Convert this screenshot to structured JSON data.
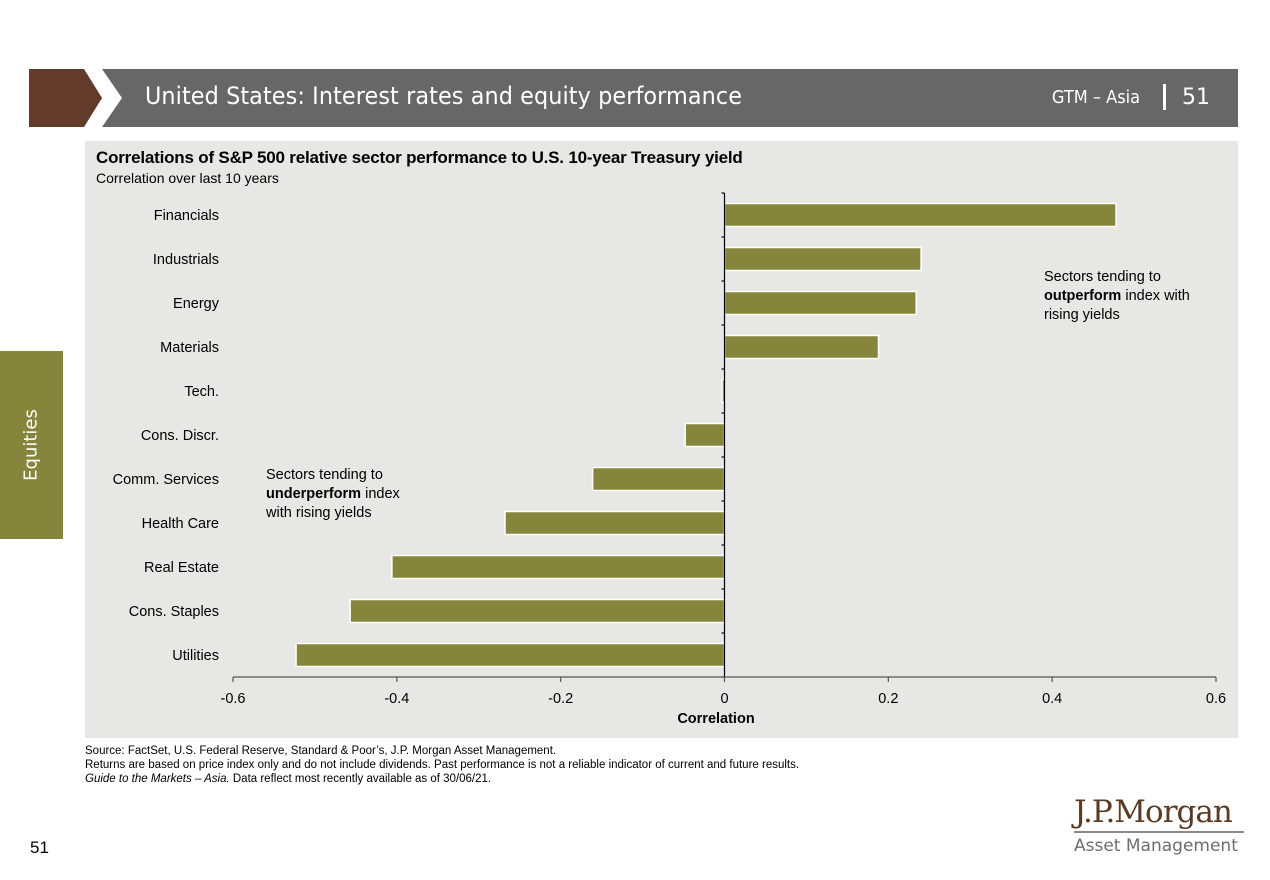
{
  "header": {
    "title": "United States: Interest rates and equity performance",
    "section": "GTM – Asia",
    "page": "51"
  },
  "sidebar": {
    "label": "Equities"
  },
  "annotations": {
    "outperform": {
      "line1": "Sectors tending to",
      "bold": "outperform",
      "rest": " index with",
      "line3": "rising yields"
    },
    "underperform": {
      "line1": "Sectors tending to",
      "bold": "underperform",
      "rest": " index",
      "line3": "with rising yields"
    }
  },
  "footer": {
    "source": "Source: FactSet, U.S. Federal Reserve, Standard & Poor’s, J.P. Morgan Asset Management.",
    "disclaimer": "Returns are based on price index only and do not include dividends. Past performance is not a reliable indicator of current and future results.",
    "guide_italic": "Guide to the Markets – Asia.",
    "guide_rest": " Data reflect most recently available as of 30/06/21."
  },
  "page_number": "51",
  "logo": {
    "top": "J.P.Morgan",
    "bottom": "Asset Management"
  },
  "colors": {
    "bar": "#85863c",
    "header_bar": "#676767",
    "header_accent": "#633b2b",
    "panel": "#e7e7e6"
  },
  "chart_data": {
    "type": "bar",
    "orientation": "horizontal",
    "title": "Correlations of S&P 500 relative sector performance to U.S. 10-year Treasury yield",
    "subtitle": "Correlation over last 10 years",
    "xlabel": "Correlation",
    "ylabel": "",
    "xlim": [
      -0.6,
      0.6
    ],
    "xticks": [
      -0.6,
      -0.4,
      -0.2,
      0,
      0.2,
      0.4,
      0.6
    ],
    "xtick_labels": [
      "-0.6",
      "-0.4",
      "-0.2",
      "0",
      "0.2",
      "0.4",
      "0.6"
    ],
    "grid": false,
    "legend": "none",
    "categories": [
      "Financials",
      "Industrials",
      "Energy",
      "Materials",
      "Tech.",
      "Cons. Discr.",
      "Comm. Services",
      "Health Care",
      "Real Estate",
      "Cons. Staples",
      "Utilities"
    ],
    "values": [
      0.478,
      0.24,
      0.234,
      0.188,
      -0.003,
      -0.048,
      -0.161,
      -0.268,
      -0.406,
      -0.457,
      -0.523
    ]
  }
}
